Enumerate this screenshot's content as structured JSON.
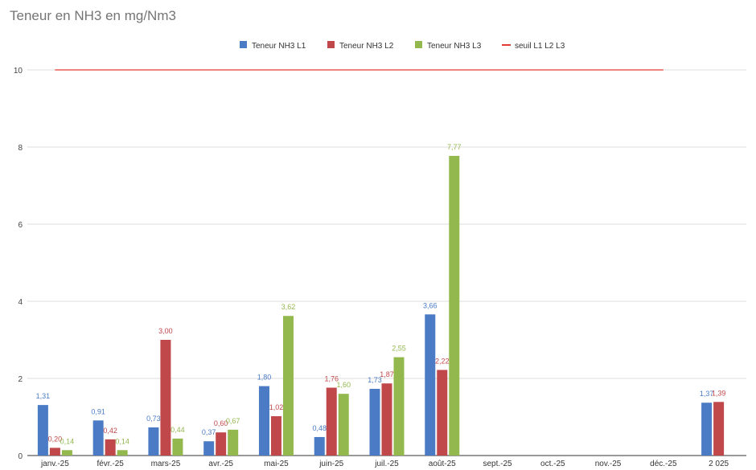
{
  "chart_data": {
    "type": "bar",
    "title": "Teneur en NH3 en mg/Nm3",
    "xlabel": "",
    "ylabel": "",
    "ylim": [
      0,
      10
    ],
    "yticks": [
      0,
      2,
      4,
      6,
      8,
      10
    ],
    "grid": true,
    "legend_position": "top",
    "categories": [
      "janv.-25",
      "févr.-25",
      "mars-25",
      "avr.-25",
      "mai-25",
      "juin-25",
      "juil.-25",
      "août-25",
      "sept.-25",
      "oct.-25",
      "nov.-25",
      "déc.-25",
      "2 025"
    ],
    "series": [
      {
        "name": "Teneur NH3 L1",
        "color": "#4a7bc4",
        "values": [
          1.31,
          0.91,
          0.73,
          0.37,
          1.8,
          0.48,
          1.73,
          3.66,
          null,
          null,
          null,
          null,
          1.37
        ],
        "labels": [
          "1,31",
          "0,91",
          "0,73",
          "0,37",
          "1,80",
          "0,48",
          "1,73",
          "3,66",
          "",
          "",
          "",
          "",
          "1,37"
        ]
      },
      {
        "name": "Teneur NH3 L2",
        "color": "#c0474a",
        "values": [
          0.2,
          0.42,
          3.0,
          0.6,
          1.02,
          1.76,
          1.87,
          2.22,
          null,
          null,
          null,
          null,
          1.39
        ],
        "labels": [
          "0,20",
          "0,42",
          "3,00",
          "0,60",
          "1,02",
          "1,76",
          "1,87",
          "2,22",
          "",
          "",
          "",
          "",
          "1,39"
        ]
      },
      {
        "name": "Teneur NH3 L3",
        "color": "#93b84e",
        "values": [
          0.14,
          0.14,
          0.44,
          0.67,
          3.62,
          1.6,
          2.55,
          7.77,
          null,
          null,
          null,
          null,
          null
        ],
        "labels": [
          "0,14",
          "0,14",
          "0,44",
          "0,67",
          "3,62",
          "1,60",
          "2,55",
          "7,77",
          "",
          "",
          "",
          "",
          ""
        ]
      }
    ],
    "threshold": {
      "name": "seuil L1 L2 L3",
      "value": 10,
      "color": "#e53935",
      "from_category": "janv.-25",
      "to_category": "déc.-25"
    }
  }
}
